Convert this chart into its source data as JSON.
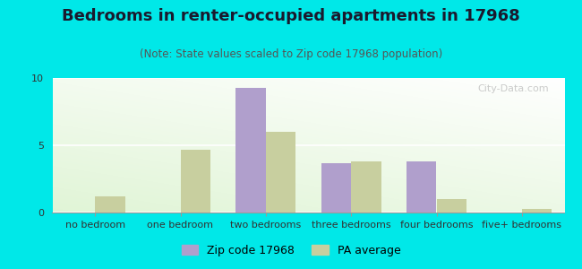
{
  "categories": [
    "no bedroom",
    "one bedroom",
    "two bedrooms",
    "three bedrooms",
    "four bedrooms",
    "five+ bedrooms"
  ],
  "zip_values": [
    0,
    0,
    9.3,
    3.7,
    3.8,
    0
  ],
  "pa_values": [
    1.2,
    4.7,
    6.0,
    3.8,
    1.0,
    0.3
  ],
  "zip_color": "#b09fcc",
  "pa_color": "#c8cf9f",
  "title": "Bedrooms in renter-occupied apartments in 17968",
  "subtitle": "(Note: State values scaled to Zip code 17968 population)",
  "ylim": [
    0,
    10
  ],
  "yticks": [
    0,
    5,
    10
  ],
  "background_color": "#00e8e8",
  "legend_zip_label": "Zip code 17968",
  "legend_pa_label": "PA average",
  "title_fontsize": 13,
  "subtitle_fontsize": 8.5,
  "tick_fontsize": 8,
  "legend_fontsize": 9,
  "bar_width": 0.35
}
